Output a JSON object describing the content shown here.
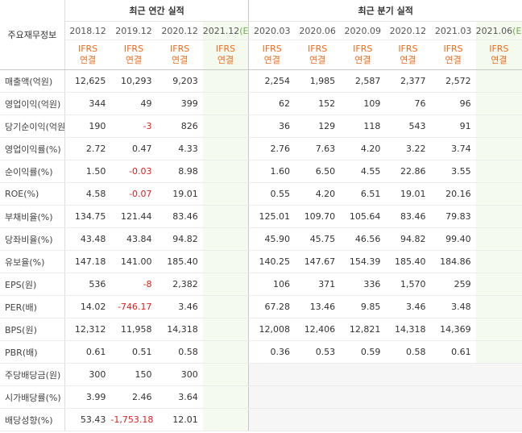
{
  "table": {
    "header": {
      "title": "주요재무정보",
      "annual_title": "최근 연간 실적",
      "quarterly_title": "최근 분기 실적",
      "annual_dates": [
        "2018.12",
        "2019.12",
        "2020.12"
      ],
      "annual_estimate": "2021.12",
      "quarterly_dates": [
        "2020.03",
        "2020.06",
        "2020.09",
        "2020.12",
        "2021.03"
      ],
      "quarterly_estimate": "2021.06",
      "estimate_mark": "(E)",
      "basis": [
        "IFRS",
        "연결"
      ]
    },
    "groups": [
      [
        {
          "label": "매출액(억원)",
          "annual": [
            "12,625",
            "10,293",
            "9,203"
          ],
          "quarterly": [
            "2,254",
            "1,985",
            "2,587",
            "2,377",
            "2,572"
          ]
        },
        {
          "label": "영업이익(억원)",
          "annual": [
            "344",
            "49",
            "399"
          ],
          "quarterly": [
            "62",
            "152",
            "109",
            "76",
            "96"
          ]
        },
        {
          "label": "당기순이익(억원)",
          "annual": [
            "190",
            "-3",
            "826"
          ],
          "quarterly": [
            "36",
            "129",
            "118",
            "543",
            "91"
          ]
        }
      ],
      [
        {
          "label": "영업이익률(%)",
          "annual": [
            "2.72",
            "0.47",
            "4.33"
          ],
          "quarterly": [
            "2.76",
            "7.63",
            "4.20",
            "3.22",
            "3.74"
          ]
        },
        {
          "label": "순이익률(%)",
          "annual": [
            "1.50",
            "-0.03",
            "8.98"
          ],
          "quarterly": [
            "1.60",
            "6.50",
            "4.55",
            "22.86",
            "3.55"
          ]
        },
        {
          "label": "ROE(%)",
          "annual": [
            "4.58",
            "-0.07",
            "19.01"
          ],
          "quarterly": [
            "0.55",
            "4.20",
            "6.51",
            "19.01",
            "20.16"
          ]
        }
      ],
      [
        {
          "label": "부채비율(%)",
          "annual": [
            "134.75",
            "121.44",
            "83.46"
          ],
          "quarterly": [
            "125.01",
            "109.70",
            "105.64",
            "83.46",
            "79.83"
          ]
        },
        {
          "label": "당좌비율(%)",
          "annual": [
            "43.48",
            "43.84",
            "94.82"
          ],
          "quarterly": [
            "45.90",
            "45.75",
            "46.56",
            "94.82",
            "99.40"
          ]
        },
        {
          "label": "유보율(%)",
          "annual": [
            "147.18",
            "141.00",
            "185.40"
          ],
          "quarterly": [
            "140.25",
            "147.67",
            "154.39",
            "185.40",
            "184.86"
          ]
        }
      ],
      [
        {
          "label": "EPS(원)",
          "annual": [
            "536",
            "-8",
            "2,382"
          ],
          "quarterly": [
            "106",
            "371",
            "336",
            "1,570",
            "259"
          ]
        },
        {
          "label": "PER(배)",
          "annual": [
            "14.02",
            "-746.17",
            "3.46"
          ],
          "quarterly": [
            "67.28",
            "13.46",
            "9.85",
            "3.46",
            "3.48"
          ]
        },
        {
          "label": "BPS(원)",
          "annual": [
            "12,312",
            "11,958",
            "14,318"
          ],
          "quarterly": [
            "12,008",
            "12,406",
            "12,821",
            "14,318",
            "14,369"
          ]
        },
        {
          "label": "PBR(배)",
          "annual": [
            "0.61",
            "0.51",
            "0.58"
          ],
          "quarterly": [
            "0.36",
            "0.53",
            "0.59",
            "0.58",
            "0.61"
          ]
        }
      ],
      [
        {
          "label": "주당배당금(원)",
          "annual": [
            "300",
            "150",
            "300"
          ]
        },
        {
          "label": "시가배당률(%)",
          "annual": [
            "3.99",
            "2.46",
            "3.64"
          ]
        },
        {
          "label": "배당성향(%)",
          "annual": [
            "53.43",
            "-1,753.18",
            "12.01"
          ]
        }
      ]
    ]
  }
}
